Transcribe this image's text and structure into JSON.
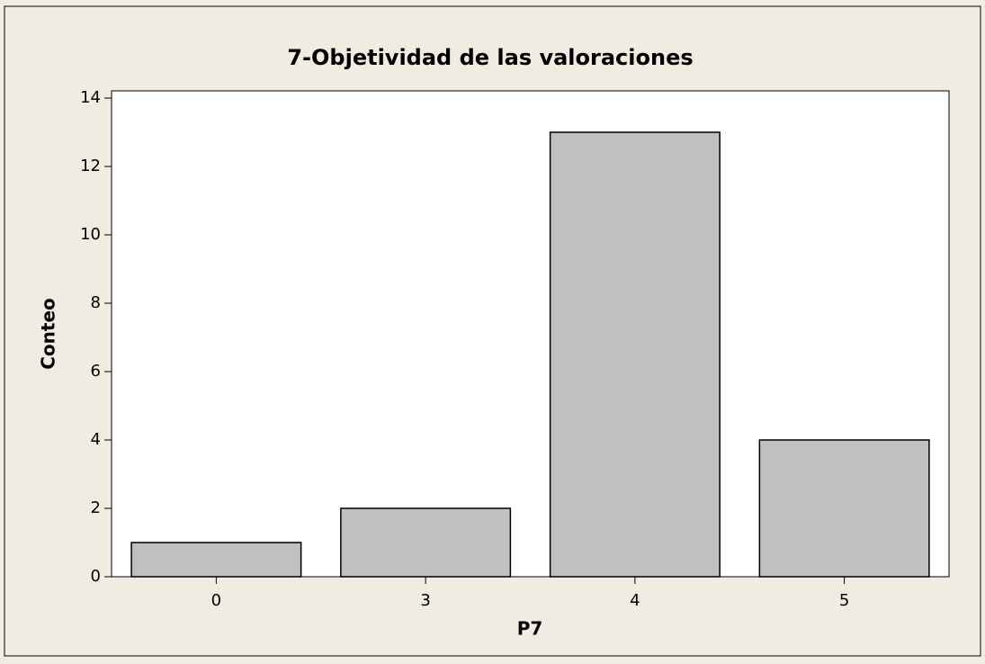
{
  "chart_data": {
    "type": "bar",
    "title": "7-Objetividad de las valoraciones",
    "x_label": "P7",
    "y_label": "Conteo",
    "categories": [
      "0",
      "3",
      "4",
      "5"
    ],
    "values": [
      1,
      2,
      13,
      4
    ],
    "color": "#c0c0c0",
    "ylim": [
      0,
      14
    ],
    "yticks": [
      0,
      2,
      4,
      6,
      8,
      10,
      12,
      14
    ],
    "grid": false
  }
}
